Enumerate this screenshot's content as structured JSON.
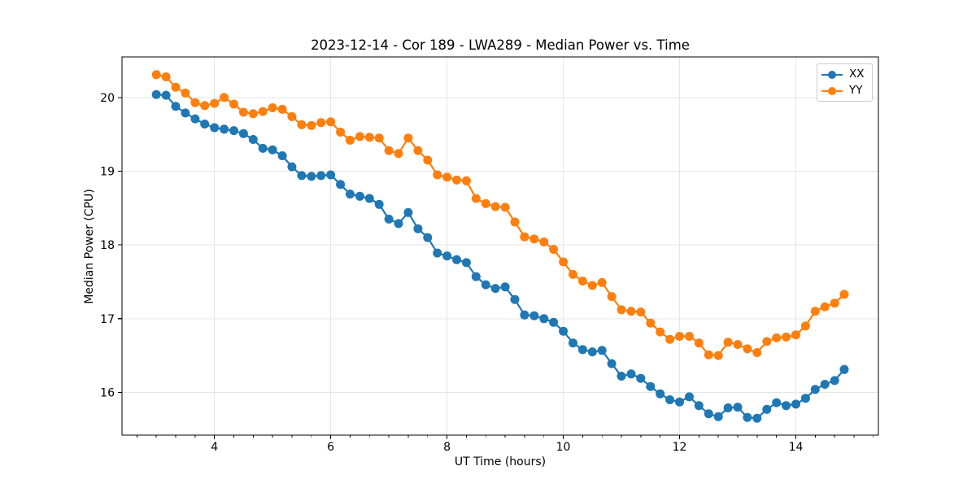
{
  "chart_data": {
    "type": "line",
    "title": "2023-12-14 - Cor 189 - LWA289 - Median Power vs. Time",
    "xlabel": "UT Time (hours)",
    "ylabel": "Median Power (CPU)",
    "xlim": [
      2.41,
      15.42
    ],
    "ylim": [
      15.42,
      20.55
    ],
    "x_ticks": [
      4,
      6,
      8,
      10,
      12,
      14
    ],
    "x_tick_labels": [
      "4",
      "6",
      "8",
      "10",
      "12",
      "14"
    ],
    "x_minor_tick_step": 0.33333,
    "y_ticks": [
      16,
      17,
      18,
      19,
      20
    ],
    "y_tick_labels": [
      "16",
      "17",
      "18",
      "19",
      "20"
    ],
    "grid": true,
    "legend_position": "upper right",
    "x": [
      3.0,
      3.167,
      3.333,
      3.5,
      3.667,
      3.833,
      4.0,
      4.167,
      4.333,
      4.5,
      4.667,
      4.833,
      5.0,
      5.167,
      5.333,
      5.5,
      5.667,
      5.833,
      6.0,
      6.167,
      6.333,
      6.5,
      6.667,
      6.833,
      7.0,
      7.167,
      7.333,
      7.5,
      7.667,
      7.833,
      8.0,
      8.167,
      8.333,
      8.5,
      8.667,
      8.833,
      9.0,
      9.167,
      9.333,
      9.5,
      9.667,
      9.833,
      10.0,
      10.167,
      10.333,
      10.5,
      10.667,
      10.833,
      11.0,
      11.167,
      11.333,
      11.5,
      11.667,
      11.833,
      12.0,
      12.167,
      12.333,
      12.5,
      12.667,
      12.833,
      13.0,
      13.167,
      13.333,
      13.5,
      13.667,
      13.833,
      14.0,
      14.167,
      14.333,
      14.5,
      14.667,
      14.833
    ],
    "series": [
      {
        "name": "XX",
        "color": "#1f77b4",
        "values": [
          20.04,
          20.03,
          19.88,
          19.79,
          19.71,
          19.64,
          19.59,
          19.57,
          19.55,
          19.51,
          19.43,
          19.31,
          19.29,
          19.21,
          19.06,
          18.94,
          18.93,
          18.94,
          18.95,
          18.82,
          18.69,
          18.66,
          18.63,
          18.55,
          18.35,
          18.29,
          18.44,
          18.22,
          18.1,
          17.89,
          17.85,
          17.8,
          17.76,
          17.57,
          17.46,
          17.41,
          17.43,
          17.26,
          17.05,
          17.04,
          17.0,
          16.95,
          16.83,
          16.67,
          16.58,
          16.55,
          16.57,
          16.39,
          16.22,
          16.25,
          16.19,
          16.08,
          15.98,
          15.9,
          15.87,
          15.94,
          15.82,
          15.71,
          15.67,
          15.79,
          15.8,
          15.66,
          15.65,
          15.77,
          15.86,
          15.82,
          15.84,
          15.92,
          16.04,
          16.11,
          16.16,
          16.31
        ]
      },
      {
        "name": "YY",
        "color": "#ff7f0e",
        "values": [
          20.31,
          20.28,
          20.14,
          20.06,
          19.93,
          19.89,
          19.92,
          20.0,
          19.91,
          19.8,
          19.78,
          19.81,
          19.86,
          19.84,
          19.74,
          19.63,
          19.62,
          19.66,
          19.67,
          19.53,
          19.42,
          19.47,
          19.46,
          19.45,
          19.28,
          19.24,
          19.45,
          19.28,
          19.15,
          18.95,
          18.92,
          18.88,
          18.87,
          18.63,
          18.56,
          18.52,
          18.51,
          18.31,
          18.11,
          18.08,
          18.04,
          17.94,
          17.77,
          17.6,
          17.51,
          17.45,
          17.49,
          17.3,
          17.12,
          17.1,
          17.09,
          16.94,
          16.82,
          16.72,
          16.76,
          16.76,
          16.67,
          16.51,
          16.5,
          16.68,
          16.65,
          16.59,
          16.54,
          16.69,
          16.74,
          16.75,
          16.78,
          16.9,
          17.1,
          17.16,
          17.21,
          17.33
        ]
      }
    ]
  },
  "style": {
    "background": "#ffffff",
    "grid_color": "#e5e5e5",
    "spine_color": "#000000",
    "tick_color": "#000000",
    "text_color": "#000000",
    "legend_border": "#cccccc"
  }
}
